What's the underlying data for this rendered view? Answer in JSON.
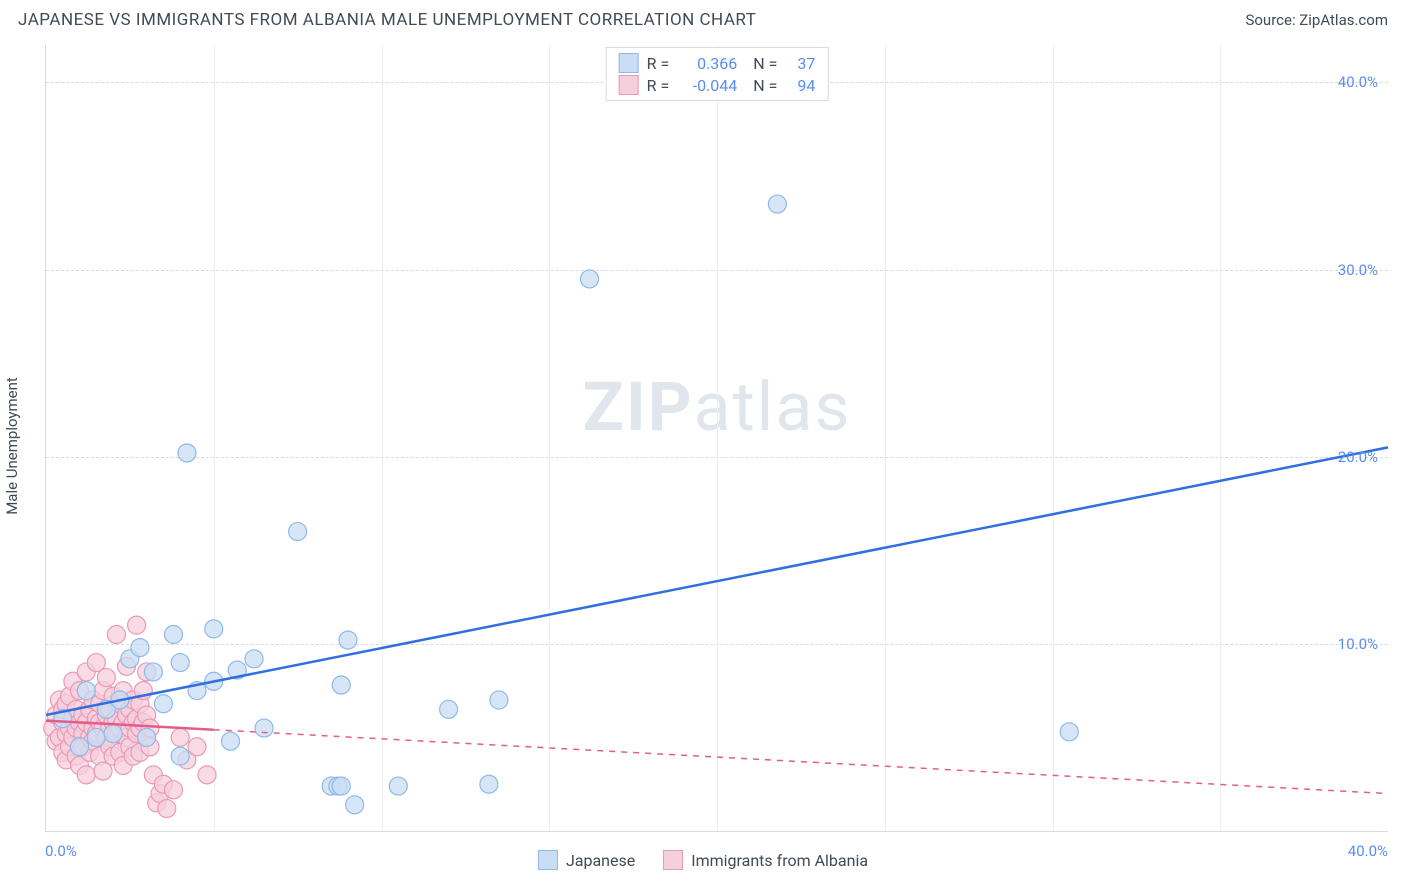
{
  "header": {
    "title": "JAPANESE VS IMMIGRANTS FROM ALBANIA MALE UNEMPLOYMENT CORRELATION CHART",
    "source": "Source: ZipAtlas.com"
  },
  "chart": {
    "type": "scatter",
    "ylabel": "Male Unemployment",
    "watermark_bold": "ZIP",
    "watermark_light": "atlas",
    "background_color": "#ffffff",
    "grid_color": "#d4dbe3",
    "axis_color": "#d4dbe3",
    "tick_label_color": "#5b8def",
    "text_color": "#414b56",
    "xlim": [
      0,
      40
    ],
    "ylim": [
      0,
      42
    ],
    "xticks": [
      {
        "v": 0,
        "label": "0.0%"
      },
      {
        "v": 40,
        "label": "40.0%"
      }
    ],
    "yticks": [
      {
        "v": 10,
        "label": "10.0%"
      },
      {
        "v": 20,
        "label": "20.0%"
      },
      {
        "v": 30,
        "label": "30.0%"
      },
      {
        "v": 40,
        "label": "40.0%"
      }
    ],
    "x_gridlines": [
      5,
      10,
      15,
      20,
      25,
      30,
      35
    ],
    "y_gridlines": [
      10,
      20,
      30,
      40
    ],
    "series": {
      "japanese": {
        "label": "Japanese",
        "fill": "#c9ddf4",
        "stroke": "#8fb9e8",
        "marker_r": 9,
        "R": "0.366",
        "N": "37",
        "trend": {
          "x1": 0,
          "y1": 6.2,
          "x2": 40,
          "y2": 20.5,
          "color": "#2f6fe0",
          "dash_after_x": null
        },
        "points": [
          [
            0.5,
            6.0
          ],
          [
            1.0,
            4.5
          ],
          [
            1.2,
            7.5
          ],
          [
            1.5,
            5.0
          ],
          [
            1.8,
            6.5
          ],
          [
            2.0,
            5.2
          ],
          [
            2.2,
            7.0
          ],
          [
            2.5,
            9.2
          ],
          [
            2.8,
            9.8
          ],
          [
            3.0,
            5.0
          ],
          [
            3.2,
            8.5
          ],
          [
            3.5,
            6.8
          ],
          [
            3.8,
            10.5
          ],
          [
            4.0,
            4.0
          ],
          [
            4.0,
            9.0
          ],
          [
            4.2,
            20.2
          ],
          [
            4.5,
            7.5
          ],
          [
            5.0,
            10.8
          ],
          [
            5.0,
            8.0
          ],
          [
            5.5,
            4.8
          ],
          [
            5.7,
            8.6
          ],
          [
            6.2,
            9.2
          ],
          [
            6.5,
            5.5
          ],
          [
            7.5,
            16.0
          ],
          [
            8.5,
            2.4
          ],
          [
            8.7,
            2.4
          ],
          [
            8.8,
            2.4
          ],
          [
            8.8,
            7.8
          ],
          [
            9.0,
            10.2
          ],
          [
            9.2,
            1.4
          ],
          [
            10.5,
            2.4
          ],
          [
            12.0,
            6.5
          ],
          [
            13.2,
            2.5
          ],
          [
            13.5,
            7.0
          ],
          [
            16.2,
            29.5
          ],
          [
            21.8,
            33.5
          ],
          [
            30.5,
            5.3
          ]
        ]
      },
      "albania": {
        "label": "Immigrants from Albania",
        "fill": "#f6cfdc",
        "stroke": "#e999b6",
        "marker_r": 9,
        "R": "-0.044",
        "N": "94",
        "trend": {
          "x1": 0,
          "y1": 5.9,
          "x2": 40,
          "y2": 2.0,
          "color": "#e35d8a",
          "dash_after_x": 5
        },
        "points": [
          [
            0.2,
            5.5
          ],
          [
            0.3,
            6.2
          ],
          [
            0.3,
            4.8
          ],
          [
            0.4,
            5.0
          ],
          [
            0.4,
            7.0
          ],
          [
            0.5,
            5.8
          ],
          [
            0.5,
            6.5
          ],
          [
            0.5,
            4.2
          ],
          [
            0.6,
            5.2
          ],
          [
            0.6,
            6.8
          ],
          [
            0.6,
            3.8
          ],
          [
            0.7,
            5.5
          ],
          [
            0.7,
            7.2
          ],
          [
            0.7,
            4.5
          ],
          [
            0.8,
            6.0
          ],
          [
            0.8,
            5.0
          ],
          [
            0.8,
            8.0
          ],
          [
            0.9,
            5.5
          ],
          [
            0.9,
            4.0
          ],
          [
            0.9,
            6.5
          ],
          [
            1.0,
            5.8
          ],
          [
            1.0,
            7.5
          ],
          [
            1.0,
            3.5
          ],
          [
            1.1,
            5.2
          ],
          [
            1.1,
            6.2
          ],
          [
            1.1,
            4.5
          ],
          [
            1.2,
            5.8
          ],
          [
            1.2,
            8.5
          ],
          [
            1.2,
            3.0
          ],
          [
            1.3,
            5.0
          ],
          [
            1.3,
            6.5
          ],
          [
            1.3,
            4.2
          ],
          [
            1.4,
            5.5
          ],
          [
            1.4,
            7.0
          ],
          [
            1.4,
            4.8
          ],
          [
            1.5,
            6.0
          ],
          [
            1.5,
            5.2
          ],
          [
            1.5,
            9.0
          ],
          [
            1.6,
            5.8
          ],
          [
            1.6,
            4.0
          ],
          [
            1.6,
            6.8
          ],
          [
            1.7,
            5.5
          ],
          [
            1.7,
            7.5
          ],
          [
            1.7,
            3.2
          ],
          [
            1.8,
            6.2
          ],
          [
            1.8,
            5.0
          ],
          [
            1.8,
            8.2
          ],
          [
            1.9,
            5.5
          ],
          [
            1.9,
            4.5
          ],
          [
            1.9,
            6.5
          ],
          [
            2.0,
            5.8
          ],
          [
            2.0,
            7.2
          ],
          [
            2.0,
            4.0
          ],
          [
            2.1,
            6.0
          ],
          [
            2.1,
            5.2
          ],
          [
            2.1,
            10.5
          ],
          [
            2.2,
            5.5
          ],
          [
            2.2,
            4.2
          ],
          [
            2.2,
            6.8
          ],
          [
            2.3,
            5.8
          ],
          [
            2.3,
            7.5
          ],
          [
            2.3,
            3.5
          ],
          [
            2.4,
            6.2
          ],
          [
            2.4,
            5.0
          ],
          [
            2.4,
            8.8
          ],
          [
            2.5,
            5.5
          ],
          [
            2.5,
            4.5
          ],
          [
            2.5,
            6.5
          ],
          [
            2.6,
            5.8
          ],
          [
            2.6,
            7.0
          ],
          [
            2.6,
            4.0
          ],
          [
            2.7,
            6.0
          ],
          [
            2.7,
            5.2
          ],
          [
            2.7,
            11.0
          ],
          [
            2.8,
            5.5
          ],
          [
            2.8,
            4.2
          ],
          [
            2.8,
            6.8
          ],
          [
            2.9,
            5.8
          ],
          [
            2.9,
            7.5
          ],
          [
            3.0,
            6.2
          ],
          [
            3.0,
            5.0
          ],
          [
            3.0,
            8.5
          ],
          [
            3.1,
            5.5
          ],
          [
            3.1,
            4.5
          ],
          [
            3.2,
            3.0
          ],
          [
            3.3,
            1.5
          ],
          [
            3.4,
            2.0
          ],
          [
            3.5,
            2.5
          ],
          [
            3.6,
            1.2
          ],
          [
            3.8,
            2.2
          ],
          [
            4.0,
            5.0
          ],
          [
            4.2,
            3.8
          ],
          [
            4.5,
            4.5
          ],
          [
            4.8,
            3.0
          ]
        ]
      }
    },
    "legend_bottom": [
      {
        "key": "japanese"
      },
      {
        "key": "albania"
      }
    ]
  }
}
